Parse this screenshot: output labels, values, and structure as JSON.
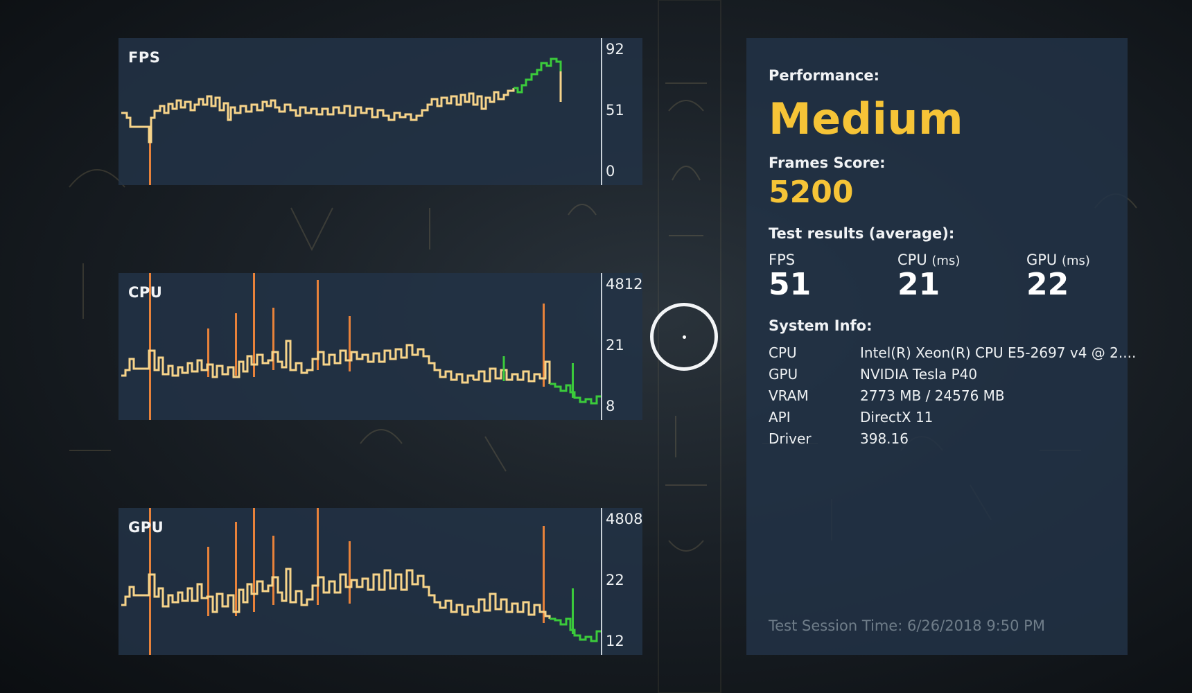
{
  "graphs": [
    {
      "id": "fps",
      "title": "FPS",
      "ticks": [
        "92",
        "51",
        "0"
      ]
    },
    {
      "id": "cpu",
      "title": "CPU",
      "ticks": [
        "4812",
        "21",
        "8"
      ]
    },
    {
      "id": "gpu",
      "title": "GPU",
      "ticks": [
        "4808",
        "22",
        "12"
      ]
    }
  ],
  "performance": {
    "label": "Performance:",
    "value": "Medium",
    "frames_score_label": "Frames Score:",
    "frames_score": "5200",
    "test_results_label": "Test results (average):",
    "stats": [
      {
        "name": "FPS",
        "unit": "",
        "value": "51"
      },
      {
        "name": "CPU",
        "unit": "(ms)",
        "value": "21"
      },
      {
        "name": "GPU",
        "unit": "(ms)",
        "value": "22"
      }
    ],
    "system_info_label": "System Info:",
    "system_info": [
      {
        "key": "CPU",
        "value": "Intel(R) Xeon(R) CPU E5-2697 v4 @ 2...."
      },
      {
        "key": "GPU",
        "value": "NVIDIA Tesla P40"
      },
      {
        "key": "VRAM",
        "value": "2773 MB / 24576 MB"
      },
      {
        "key": "API",
        "value": "DirectX 11"
      },
      {
        "key": "Driver",
        "value": "398.16"
      }
    ],
    "session_time": "Test Session Time: 6/26/2018 9:50 PM"
  },
  "colors": {
    "accent": "#f6c437",
    "line": "#f7d48a",
    "spike": "#e8823a",
    "good": "#3bcb3b"
  }
}
